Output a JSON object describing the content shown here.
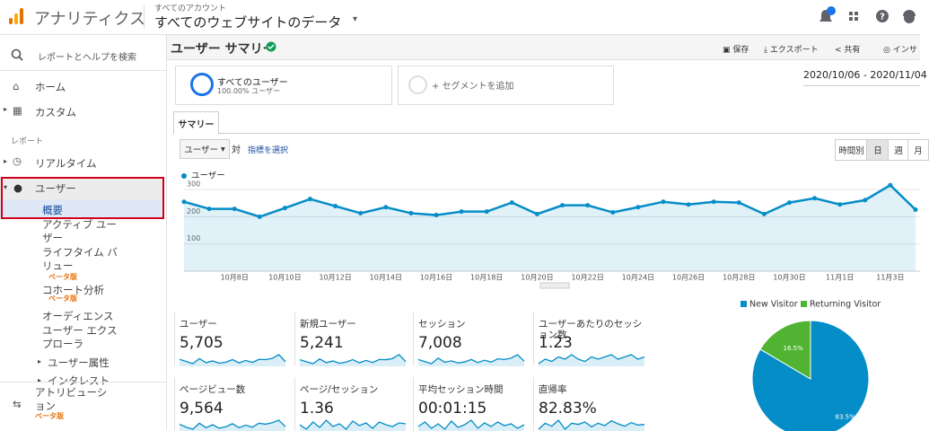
{
  "header": {
    "app_name": "アナリティクス",
    "account": "すべてのアカウント",
    "property": "すべてのウェブサイトのデータ"
  },
  "sidebar": {
    "search": "レポートとヘルプを検索",
    "items": [
      {
        "label": "ホーム"
      },
      {
        "label": "カスタム"
      }
    ],
    "section": "レポート",
    "report_items": [
      {
        "label": "リアルタイム"
      },
      {
        "label": "ユーザー"
      }
    ],
    "sub_items": [
      {
        "label": "概要"
      },
      {
        "label": "アクティブ ユーザー"
      },
      {
        "label": "ライフタイム バリュー",
        "badge": "ベータ版"
      },
      {
        "label": "コホート分析",
        "badge": "ベータ版"
      },
      {
        "label": "オーディエンス"
      },
      {
        "label": "ユーザー エクスプローラ"
      }
    ],
    "groups": [
      {
        "label": "ユーザー属性"
      },
      {
        "label": "インタレスト"
      }
    ],
    "attribution": {
      "label": "アトリビューション",
      "badge": "ベータ版"
    }
  },
  "page": {
    "title": "ユーザー サマリー",
    "actions": [
      "保存",
      "エクスポート",
      "共有",
      "インサ"
    ],
    "segments": [
      {
        "name": "すべてのユーザー",
        "detail": "100.00% ユーザー"
      }
    ],
    "add_segment": "+ セグメントを追加",
    "date_range": "2020/10/06 - 2020/11/04",
    "tab": "サマリー",
    "metric_select": "ユーザー",
    "versus": "対",
    "select_metric": "指標を選択",
    "granularity": [
      "時間別",
      "日",
      "週",
      "月"
    ]
  },
  "chart_data": [
    {
      "type": "line",
      "categories": [
        null,
        null,
        "10月8日",
        null,
        "10月10日",
        null,
        "10月12日",
        null,
        "10月14日",
        null,
        "10月16日",
        null,
        "10月18日",
        null,
        "10月20日",
        null,
        "10月22日",
        null,
        "10月24日",
        null,
        "10月26日",
        null,
        "10月28日",
        null,
        "10月30日",
        null,
        "11月1日",
        null,
        "11月3日",
        null
      ],
      "series": [
        {
          "name": "ユーザー",
          "color": "#058dc7",
          "values": [
            255,
            229,
            229,
            200,
            232,
            265,
            239,
            213,
            235,
            213,
            206,
            219,
            219,
            252,
            210,
            242,
            242,
            216,
            235,
            255,
            245,
            255,
            252,
            210,
            252,
            268,
            245,
            261,
            316,
            226
          ]
        }
      ],
      "ylim": [
        0,
        320
      ],
      "yticks": [
        100,
        200,
        300
      ],
      "grid": true
    },
    {
      "type": "pie",
      "categories": [
        "New Visitor",
        "Returning Visitor"
      ],
      "values": [
        83.5,
        16.5
      ],
      "value_labels": [
        "83.5%",
        "16.5%"
      ],
      "colors": [
        "#058dc7",
        "#50b432"
      ]
    }
  ],
  "metrics": [
    {
      "label": "ユーザー",
      "value": "5,705",
      "sparkline": [
        255,
        229,
        200,
        265,
        213,
        235,
        206,
        219,
        252,
        210,
        242,
        216,
        255,
        252,
        268,
        316,
        226
      ]
    },
    {
      "label": "新規ユーザー",
      "value": "5,241",
      "sparkline": [
        235,
        210,
        185,
        245,
        198,
        220,
        190,
        205,
        236,
        196,
        226,
        200,
        238,
        236,
        250,
        300,
        210
      ]
    },
    {
      "label": "セッション",
      "value": "7,008",
      "sparkline": [
        300,
        270,
        240,
        320,
        260,
        280,
        250,
        265,
        300,
        255,
        290,
        262,
        310,
        300,
        320,
        370,
        275
      ]
    },
    {
      "label": "ユーザーあたりのセッション数",
      "value": "1.23",
      "sparkline": [
        1.2,
        1.22,
        1.21,
        1.23,
        1.22,
        1.24,
        1.22,
        1.21,
        1.23,
        1.22,
        1.23,
        1.24,
        1.22,
        1.23,
        1.24,
        1.22,
        1.23
      ]
    },
    {
      "label": "ページビュー数",
      "value": "9,564",
      "sparkline": [
        400,
        340,
        300,
        420,
        330,
        390,
        320,
        350,
        410,
        330,
        380,
        340,
        420,
        400,
        430,
        480,
        350
      ]
    },
    {
      "label": "ページ/セッション",
      "value": "1.36",
      "sparkline": [
        1.35,
        1.3,
        1.38,
        1.32,
        1.4,
        1.33,
        1.36,
        1.3,
        1.39,
        1.34,
        1.37,
        1.31,
        1.38,
        1.35,
        1.33,
        1.37,
        1.36
      ]
    },
    {
      "label": "平均セッション時間",
      "value": "00:01:15",
      "sparkline": [
        70,
        95,
        60,
        85,
        55,
        100,
        65,
        80,
        105,
        60,
        90,
        70,
        95,
        75,
        85,
        60,
        80
      ]
    },
    {
      "label": "直帰率",
      "value": "82.83%",
      "sparkline": [
        82,
        83,
        82.5,
        83.5,
        82,
        83,
        82.8,
        83.2,
        82.4,
        83,
        82.6,
        83.4,
        82.9,
        82.5,
        83.1,
        82.7,
        82.8
      ]
    }
  ]
}
